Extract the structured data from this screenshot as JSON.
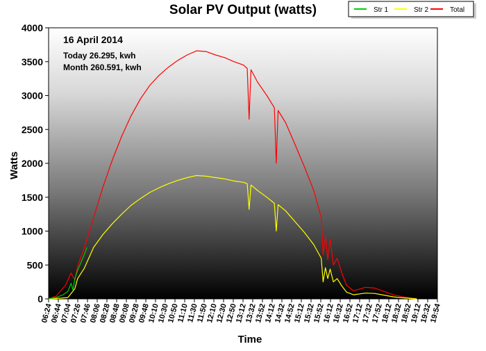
{
  "chart_data": {
    "type": "line",
    "title": "Solar PV Output (watts)",
    "xlabel": "Time",
    "ylabel": "Watts",
    "ylim": [
      0,
      4000
    ],
    "yticks": [
      0,
      500,
      1000,
      1500,
      2000,
      2500,
      3000,
      3500,
      4000
    ],
    "xlim_minutes": [
      384,
      1214
    ],
    "x_tick_labels": [
      "06:24",
      "06:44",
      "07:04",
      "07:26",
      "07:46",
      "08:06",
      "08:28",
      "08:48",
      "09:08",
      "09:28",
      "09:48",
      "10:10",
      "10:30",
      "10:50",
      "11:10",
      "11:30",
      "11:50",
      "12:10",
      "12:30",
      "12:50",
      "13:12",
      "13:32",
      "13:52",
      "14:12",
      "14:32",
      "14:52",
      "15:12",
      "15:32",
      "15:52",
      "16:12",
      "16:32",
      "16:52",
      "17:12",
      "17:32",
      "17:52",
      "18:12",
      "18:32",
      "18:52",
      "19:12",
      "19:32",
      "19:54"
    ],
    "annotations": {
      "date": "16 April 2014",
      "today": "Today 26.295, kwh",
      "month": "Month 260.591, kwh"
    },
    "legend": {
      "placement": "top-right",
      "entries": [
        {
          "name": "Str 1",
          "color": "#00cc00"
        },
        {
          "name": "Str 2",
          "color": "#ffff00"
        },
        {
          "name": "Total",
          "color": "#ff0000"
        }
      ]
    },
    "series": [
      {
        "name": "Total",
        "color": "#ff0000",
        "points": [
          [
            384,
            0
          ],
          [
            400,
            40
          ],
          [
            420,
            200
          ],
          [
            432,
            380
          ],
          [
            440,
            280
          ],
          [
            446,
            480
          ],
          [
            460,
            750
          ],
          [
            480,
            1200
          ],
          [
            500,
            1650
          ],
          [
            520,
            2050
          ],
          [
            540,
            2400
          ],
          [
            560,
            2700
          ],
          [
            580,
            2950
          ],
          [
            600,
            3150
          ],
          [
            620,
            3300
          ],
          [
            640,
            3420
          ],
          [
            660,
            3520
          ],
          [
            680,
            3600
          ],
          [
            700,
            3660
          ],
          [
            720,
            3650
          ],
          [
            740,
            3600
          ],
          [
            760,
            3560
          ],
          [
            780,
            3500
          ],
          [
            800,
            3450
          ],
          [
            808,
            3400
          ],
          [
            812,
            2650
          ],
          [
            816,
            3380
          ],
          [
            830,
            3200
          ],
          [
            850,
            3000
          ],
          [
            866,
            2820
          ],
          [
            870,
            2000
          ],
          [
            874,
            2780
          ],
          [
            890,
            2600
          ],
          [
            910,
            2280
          ],
          [
            930,
            1950
          ],
          [
            950,
            1600
          ],
          [
            966,
            1200
          ],
          [
            970,
            650
          ],
          [
            975,
            930
          ],
          [
            980,
            580
          ],
          [
            985,
            880
          ],
          [
            992,
            500
          ],
          [
            1000,
            600
          ],
          [
            1010,
            380
          ],
          [
            1020,
            200
          ],
          [
            1035,
            120
          ],
          [
            1050,
            150
          ],
          [
            1060,
            170
          ],
          [
            1080,
            160
          ],
          [
            1100,
            110
          ],
          [
            1120,
            60
          ],
          [
            1140,
            30
          ],
          [
            1160,
            10
          ],
          [
            1170,
            0
          ]
        ]
      },
      {
        "name": "Str 2",
        "color": "#ffff00",
        "points": [
          [
            384,
            0
          ],
          [
            410,
            10
          ],
          [
            425,
            20
          ],
          [
            440,
            150
          ],
          [
            446,
            300
          ],
          [
            460,
            450
          ],
          [
            480,
            760
          ],
          [
            500,
            950
          ],
          [
            520,
            1110
          ],
          [
            540,
            1250
          ],
          [
            560,
            1380
          ],
          [
            580,
            1480
          ],
          [
            600,
            1570
          ],
          [
            620,
            1640
          ],
          [
            640,
            1700
          ],
          [
            660,
            1750
          ],
          [
            680,
            1790
          ],
          [
            700,
            1820
          ],
          [
            720,
            1810
          ],
          [
            740,
            1790
          ],
          [
            760,
            1770
          ],
          [
            780,
            1740
          ],
          [
            800,
            1720
          ],
          [
            808,
            1700
          ],
          [
            812,
            1320
          ],
          [
            816,
            1680
          ],
          [
            830,
            1600
          ],
          [
            850,
            1500
          ],
          [
            866,
            1410
          ],
          [
            870,
            1000
          ],
          [
            874,
            1390
          ],
          [
            890,
            1300
          ],
          [
            910,
            1140
          ],
          [
            930,
            980
          ],
          [
            950,
            800
          ],
          [
            966,
            600
          ],
          [
            970,
            250
          ],
          [
            975,
            460
          ],
          [
            980,
            300
          ],
          [
            985,
            440
          ],
          [
            992,
            250
          ],
          [
            1000,
            300
          ],
          [
            1010,
            190
          ],
          [
            1020,
            100
          ],
          [
            1035,
            60
          ],
          [
            1050,
            75
          ],
          [
            1060,
            85
          ],
          [
            1080,
            80
          ],
          [
            1100,
            55
          ],
          [
            1120,
            30
          ],
          [
            1140,
            15
          ],
          [
            1160,
            5
          ],
          [
            1170,
            0
          ]
        ]
      },
      {
        "name": "Str 1",
        "color": "#00cc00",
        "points": [
          [
            384,
            0
          ],
          [
            400,
            20
          ],
          [
            415,
            60
          ],
          [
            425,
            110
          ],
          [
            432,
            230
          ],
          [
            436,
            130
          ],
          [
            440,
            300
          ],
          [
            446,
            420
          ],
          [
            452,
            520
          ],
          [
            460,
            650
          ],
          [
            466,
            760
          ]
        ]
      }
    ]
  }
}
